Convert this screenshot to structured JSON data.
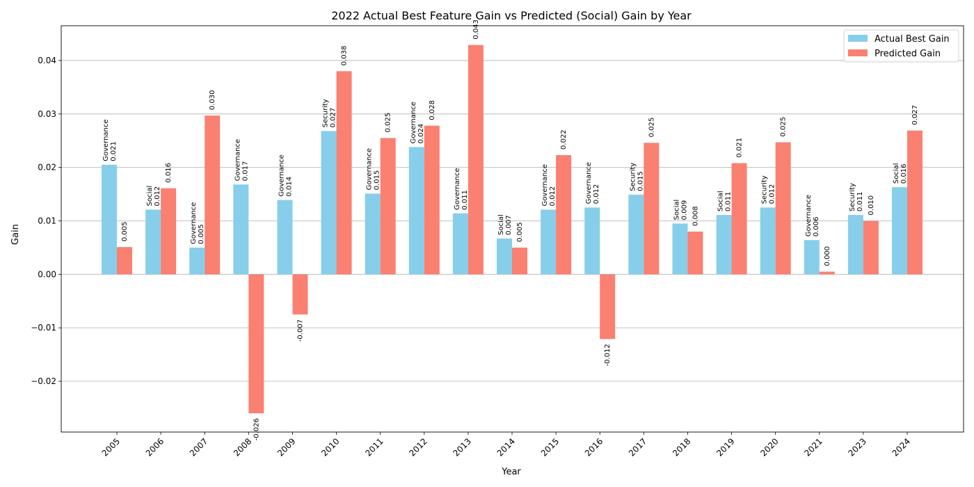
{
  "chart_data": {
    "type": "bar",
    "title": "2022 Actual Best Feature Gain vs Predicted (Social) Gain by Year",
    "xlabel": "Year",
    "ylabel": "Gain",
    "ylim": [
      -0.0295,
      0.0465
    ],
    "yticks": [
      -0.02,
      -0.01,
      0.0,
      0.01,
      0.02,
      0.03,
      0.04
    ],
    "ytick_labels": [
      "−0.02",
      "−0.01",
      "0.00",
      "0.01",
      "0.02",
      "0.03",
      "0.04"
    ],
    "grid": "horizontal",
    "legend_position": "top-right",
    "categories": [
      "2005",
      "2006",
      "2007",
      "2008",
      "2009",
      "2010",
      "2011",
      "2012",
      "2013",
      "2014",
      "2015",
      "2016",
      "2017",
      "2018",
      "2019",
      "2020",
      "2021",
      "2023",
      "2024"
    ],
    "series": [
      {
        "name": "Actual Best Gain",
        "color": "#87CEEB",
        "values": [
          0.0205,
          0.0121,
          0.005,
          0.0168,
          0.0139,
          0.0268,
          0.0151,
          0.0238,
          0.0114,
          0.0067,
          0.0121,
          0.0125,
          0.0149,
          0.0095,
          0.0111,
          0.0125,
          0.0064,
          0.0111,
          0.0163
        ],
        "features": [
          "Governance",
          "Social",
          "Governance",
          "Governance",
          "Governance",
          "Security",
          "Governance",
          "Governance",
          "Governance",
          "Social",
          "Governance",
          "Governance",
          "Security",
          "Social",
          "Social",
          "Security",
          "Governance",
          "Security",
          "Social"
        ],
        "labels": [
          "0.021",
          "0.012",
          "0.005",
          "0.017",
          "0.014",
          "0.027",
          "0.015",
          "0.024",
          "0.011",
          "0.007",
          "0.012",
          "0.012",
          "0.015",
          "0.009",
          "0.011",
          "0.012",
          "0.006",
          "0.011",
          "0.016"
        ]
      },
      {
        "name": "Predicted Gain",
        "color": "#FA8072",
        "values": [
          0.0051,
          0.0161,
          0.0297,
          -0.026,
          -0.0075,
          0.038,
          0.0255,
          0.0278,
          0.0429,
          0.005,
          0.0223,
          -0.0121,
          0.0246,
          0.008,
          0.0208,
          0.0247,
          0.0005,
          0.01,
          0.0269
        ],
        "labels": [
          "0.005",
          "0.016",
          "0.030",
          "-0.026",
          "-0.007",
          "0.038",
          "0.025",
          "0.028",
          "0.043",
          "0.005",
          "0.022",
          "-0.012",
          "0.025",
          "0.008",
          "0.021",
          "0.025",
          "0.000",
          "0.010",
          "0.027"
        ]
      }
    ]
  }
}
